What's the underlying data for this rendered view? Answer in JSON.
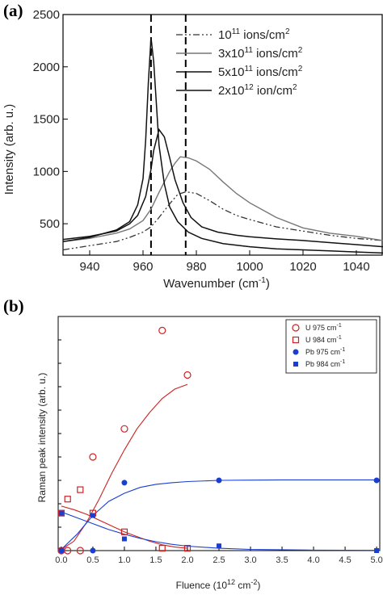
{
  "chart_data": [
    {
      "panel_label": "(a)",
      "type": "line",
      "xlabel": "Wavenumber (cm",
      "xlabel_sup": "-1",
      "xlabel_end": ")",
      "ylabel": "Intensity (arb. u.)",
      "xlim": [
        930,
        1050
      ],
      "ylim": [
        200,
        2500
      ],
      "xticks": [
        940,
        960,
        980,
        1000,
        1020,
        1040
      ],
      "yticks": [
        500,
        1000,
        1500,
        2000,
        2500
      ],
      "vlines": [
        963,
        976
      ],
      "series": [
        {
          "name": "10",
          "sup": "11",
          "unit": " ions/cm",
          "unit_sup": "2",
          "style": "dashdotdot",
          "x": [
            930,
            940,
            950,
            955,
            960,
            963,
            966,
            970,
            973,
            976,
            980,
            985,
            990,
            995,
            1000,
            1010,
            1020,
            1030,
            1040,
            1050
          ],
          "y": [
            250,
            290,
            330,
            370,
            420,
            470,
            560,
            690,
            780,
            805,
            790,
            720,
            640,
            580,
            540,
            470,
            430,
            390,
            360,
            340
          ]
        },
        {
          "name": "3x10",
          "sup": "11",
          "unit": " ions/cm",
          "unit_sup": "2",
          "style": "solid-gray",
          "x": [
            930,
            940,
            950,
            955,
            960,
            963,
            966,
            968,
            970,
            972,
            974,
            977,
            980,
            985,
            990,
            995,
            1000,
            1010,
            1020,
            1030,
            1040,
            1050
          ],
          "y": [
            330,
            360,
            410,
            450,
            530,
            640,
            800,
            900,
            1000,
            1080,
            1140,
            1130,
            1100,
            1020,
            900,
            790,
            700,
            560,
            460,
            410,
            380,
            340
          ]
        },
        {
          "name": "5x10",
          "sup": "11",
          "unit": " ions/cm",
          "unit_sup": "2",
          "style": "solid",
          "x": [
            930,
            940,
            950,
            955,
            958,
            961,
            963,
            964,
            966,
            968,
            970,
            972,
            975,
            978,
            982,
            988,
            995,
            1000,
            1010,
            1020,
            1030,
            1040,
            1050
          ],
          "y": [
            350,
            380,
            430,
            500,
            580,
            760,
            1020,
            1200,
            1400,
            1330,
            1130,
            920,
            700,
            560,
            470,
            420,
            390,
            375,
            355,
            340,
            320,
            300,
            280
          ]
        },
        {
          "name": "2x10",
          "sup": "12",
          "unit": " ion/cm",
          "unit_sup": "2",
          "style": "solid",
          "x": [
            930,
            940,
            950,
            955,
            958,
            960,
            961,
            962,
            963,
            964,
            965,
            966,
            968,
            970,
            973,
            977,
            982,
            990,
            1000,
            1010,
            1020,
            1030,
            1040,
            1050
          ],
          "y": [
            330,
            370,
            440,
            520,
            680,
            930,
            1300,
            1850,
            2280,
            2050,
            1650,
            1250,
            880,
            660,
            520,
            420,
            360,
            310,
            280,
            260,
            250,
            240,
            230,
            220
          ]
        }
      ]
    },
    {
      "panel_label": "(b)",
      "type": "scatter",
      "xlabel": "Fluence (10",
      "xlabel_sup": "12",
      "xlabel_mid": " cm",
      "xlabel_sup2": "-2",
      "xlabel_end": ")",
      "ylabel": "Raman peak intensity (arb. u.)",
      "xlim": [
        -0.05,
        5.05
      ],
      "ylim": [
        0,
        1
      ],
      "xticks": [
        "0.0",
        "0.5",
        "1.0",
        "1.5",
        "2.0",
        "2.5",
        "3.0",
        "3.5",
        "4.0",
        "4.5",
        "5.0"
      ],
      "series": [
        {
          "name": "U 975 cm",
          "sup": "-1",
          "marker": "open-circle",
          "color": "#cc2222",
          "x": [
            0,
            0.1,
            0.3,
            0.5,
            1.0,
            1.6,
            2.0
          ],
          "y": [
            0,
            0,
            0,
            0.4,
            0.52,
            0.94,
            0.75
          ]
        },
        {
          "name": "U 984 cm",
          "sup": "-1",
          "marker": "open-square",
          "color": "#cc2222",
          "x": [
            0,
            0.1,
            0.3,
            0.5,
            1.0,
            1.6,
            2.0
          ],
          "y": [
            0.16,
            0.22,
            0.26,
            0.16,
            0.08,
            0.01,
            0.01
          ]
        },
        {
          "name": "Pb 975 cm",
          "sup": "-1",
          "marker": "filled-circle",
          "color": "#1a3fd0",
          "x": [
            0,
            0.5,
            1.0,
            2.5,
            5.0
          ],
          "y": [
            0,
            0,
            0.29,
            0.3,
            0.3
          ]
        },
        {
          "name": "Pb 984 cm",
          "sup": "-1",
          "marker": "filled-square",
          "color": "#1a3fd0",
          "x": [
            0,
            0.5,
            1.0,
            2.5,
            5.0
          ],
          "y": [
            0.16,
            0.15,
            0.05,
            0.02,
            0
          ]
        }
      ],
      "fits": [
        {
          "color": "#cc2222",
          "x": [
            0,
            0.2,
            0.4,
            0.6,
            0.8,
            1.0,
            1.2,
            1.4,
            1.6,
            1.8,
            2.0
          ],
          "y": [
            0.005,
            0.04,
            0.12,
            0.22,
            0.33,
            0.43,
            0.52,
            0.59,
            0.65,
            0.69,
            0.71
          ]
        },
        {
          "color": "#cc2222",
          "x": [
            0,
            0.2,
            0.4,
            0.6,
            0.8,
            1.0,
            1.2,
            1.4,
            1.6,
            1.8,
            2.0
          ],
          "y": [
            0.19,
            0.175,
            0.155,
            0.13,
            0.105,
            0.08,
            0.06,
            0.04,
            0.025,
            0.015,
            0.01
          ]
        },
        {
          "color": "#1a3fd0",
          "x": [
            0,
            0.25,
            0.5,
            0.75,
            1.0,
            1.25,
            1.5,
            1.75,
            2.0,
            2.5,
            3.0,
            3.5,
            4.0,
            4.5,
            5.0
          ],
          "y": [
            0.005,
            0.07,
            0.15,
            0.21,
            0.245,
            0.27,
            0.283,
            0.29,
            0.295,
            0.3,
            0.301,
            0.302,
            0.302,
            0.302,
            0.302
          ]
        },
        {
          "color": "#1a3fd0",
          "x": [
            0,
            0.25,
            0.5,
            0.75,
            1.0,
            1.25,
            1.5,
            1.75,
            2.0,
            2.5,
            3.0,
            4.0,
            5.0
          ],
          "y": [
            0.165,
            0.14,
            0.115,
            0.09,
            0.07,
            0.052,
            0.038,
            0.027,
            0.019,
            0.01,
            0.005,
            0.002,
            0.001
          ]
        }
      ]
    }
  ]
}
